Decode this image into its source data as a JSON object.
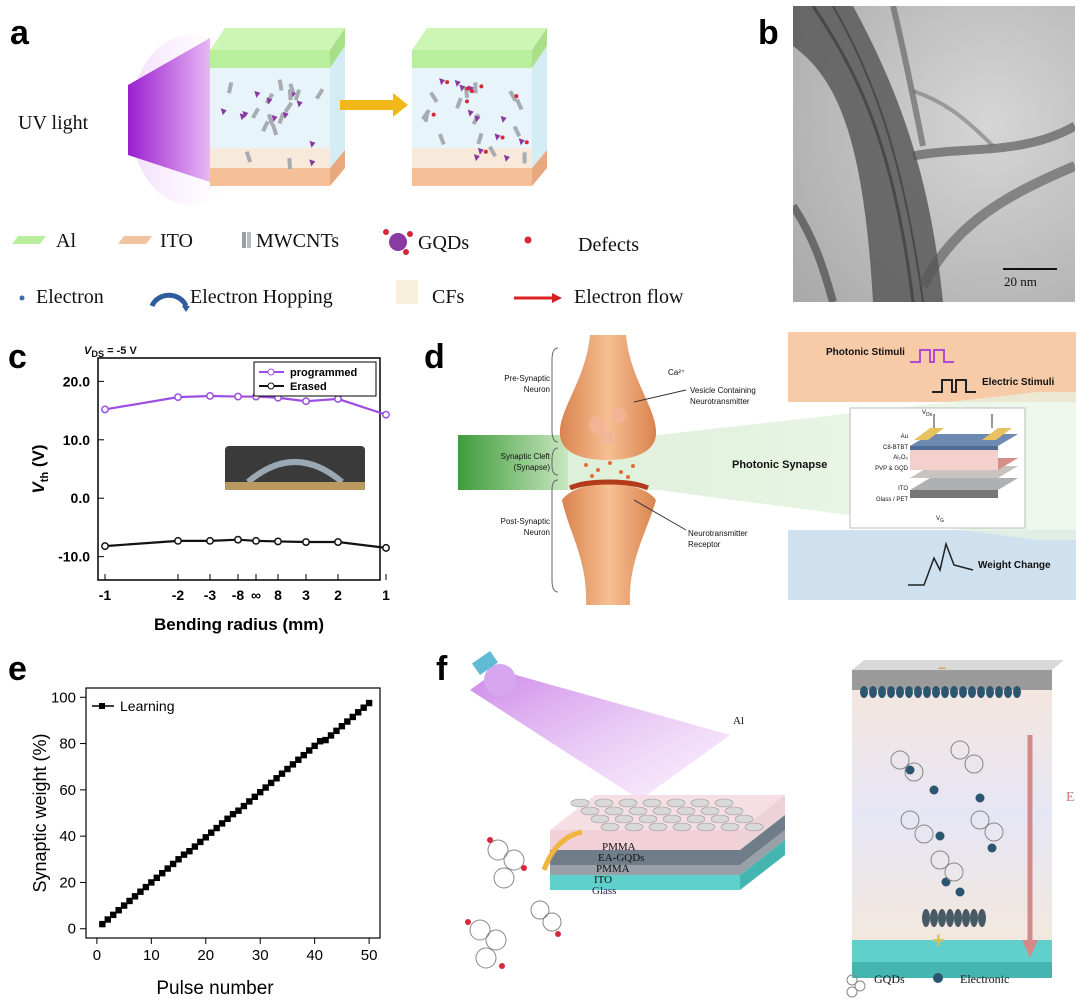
{
  "panels": {
    "a": {
      "label": "a",
      "uv_label": "UV light",
      "legend": [
        {
          "name": "al",
          "text": "Al",
          "color": "#b8ee9c"
        },
        {
          "name": "ito",
          "text": "ITO",
          "color": "#f2c3a0"
        },
        {
          "name": "mwcnts",
          "text": "MWCNTs",
          "color": "#9aa0a8"
        },
        {
          "name": "gqds",
          "text": "GQDs",
          "color": "#8a3aa0"
        },
        {
          "name": "defects",
          "text": "Defects",
          "color": "#d6283a"
        },
        {
          "name": "electron",
          "text": "Electron",
          "color": "#3a6ea8"
        },
        {
          "name": "electron-hopping",
          "text": "Electron Hopping",
          "color": "#2f5c9e"
        },
        {
          "name": "cfs",
          "text": "CFs",
          "color": "#f7efd9"
        },
        {
          "name": "electron-flow",
          "text": "Electron flow",
          "color": "#d92020"
        }
      ]
    },
    "b": {
      "label": "b",
      "scale_bar": "20 nm"
    },
    "c": {
      "label": "c",
      "annotation": "V_DS = -5 V",
      "y_axis_label": "V_th (V)",
      "x_axis_label": "Bending radius (mm)",
      "legend": [
        "programmed",
        "Erased"
      ],
      "colors": {
        "programmed": "#9b4fe0",
        "Erased": "#111111"
      }
    },
    "d": {
      "label": "d",
      "labels": {
        "pre": "Pre-Synaptic\nNeuron",
        "cleft": "Synaptic Cleft\n(Synapse)",
        "post": "Post-Synaptic\nNeuron",
        "ca": "Ca²⁺",
        "vesicle": "Vesicle Containing\nNeurotransmitter",
        "receptor": "Neurotransmitter\nReceptor",
        "photonic_stimuli": "Photonic Stimuli",
        "electric_stimuli": "Electric Stimuli",
        "photonic_synapse": "Photonic Synapse",
        "weight_change": "Weight Change",
        "vds": "V_Ds",
        "vg": "V_G"
      },
      "layers": [
        "Au",
        "C8-BTBT",
        "Al₂O₃",
        "PVP & GQD",
        "ITO",
        "Glass / PET"
      ]
    },
    "e": {
      "label": "e",
      "legend": "Learning"
    },
    "f": {
      "label": "f",
      "layers": [
        "PMMA",
        "EA-GQDs",
        "PMMA",
        "ITO",
        "Glass"
      ],
      "al_label": "Al",
      "e_label": "E",
      "minus": "−",
      "plus": "+",
      "legend": [
        {
          "name": "gqds",
          "text": "GQDs"
        },
        {
          "name": "electronic",
          "text": "Electronic"
        }
      ]
    }
  },
  "chart_data": [
    {
      "panel": "c",
      "type": "line",
      "categories": [
        "-1",
        "-2",
        "-3",
        "-8",
        "∞",
        "8",
        "3",
        "2",
        "1"
      ],
      "series": [
        {
          "name": "programmed",
          "values": [
            15.2,
            17.3,
            17.5,
            17.4,
            17.4,
            17.2,
            16.6,
            17.0,
            14.3
          ]
        },
        {
          "name": "Erased",
          "values": [
            -8.2,
            -7.3,
            -7.3,
            -7.1,
            -7.3,
            -7.4,
            -7.5,
            -7.5,
            -8.5
          ]
        }
      ],
      "xlabel": "Bending radius (mm)",
      "ylabel": "V_th (V)",
      "ylim": [
        -14,
        24
      ],
      "yticks": [
        "20.0",
        "10.0",
        "0.0",
        "-10.0"
      ],
      "legend_position": "top-right"
    },
    {
      "panel": "e",
      "type": "line",
      "series": [
        {
          "name": "Learning",
          "x": [
            1,
            2,
            3,
            4,
            5,
            6,
            7,
            8,
            9,
            10,
            11,
            12,
            13,
            14,
            15,
            16,
            17,
            18,
            19,
            20,
            21,
            22,
            23,
            24,
            25,
            26,
            27,
            28,
            29,
            30,
            31,
            32,
            33,
            34,
            35,
            36,
            37,
            38,
            39,
            40,
            41,
            42,
            43,
            44,
            45,
            46,
            47,
            48,
            49,
            50
          ],
          "values": [
            2,
            4,
            6,
            8,
            10,
            12,
            14,
            16,
            18,
            20,
            22,
            24,
            26,
            28,
            30,
            32,
            33.5,
            35.5,
            37.5,
            39.5,
            41.5,
            43.5,
            45.5,
            47.5,
            49.5,
            51,
            53,
            55,
            57,
            59,
            61,
            63,
            65,
            67,
            69,
            71,
            73,
            75,
            77,
            79,
            81,
            81.5,
            83.5,
            85.5,
            87.5,
            89.5,
            91.5,
            93.5,
            95.5,
            97.5
          ]
        }
      ],
      "xlabel": "Pulse number",
      "ylabel": "Synaptic weight (%)",
      "xlim": [
        -2,
        52
      ],
      "ylim": [
        -4,
        104
      ],
      "xticks": [
        0,
        10,
        20,
        30,
        40,
        50
      ],
      "yticks": [
        0,
        20,
        40,
        60,
        80,
        100
      ],
      "legend_position": "top-left"
    }
  ]
}
